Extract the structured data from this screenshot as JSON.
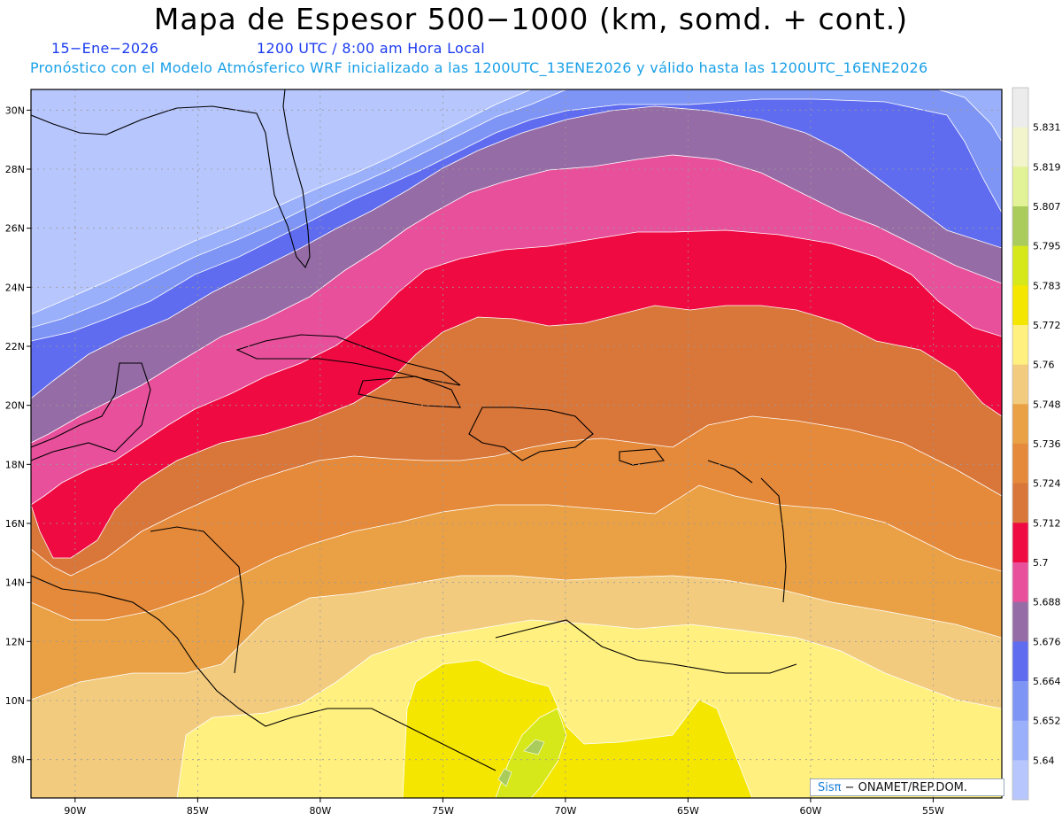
{
  "header": {
    "title": "Mapa de Espesor 500−1000 (km, somd. + cont.)",
    "date": "15−Ene−2026",
    "time": "1200 UTC / 8:00 am Hora Local",
    "description": "Pronóstico con el Modelo Atmósferico WRF inicializado a las 1200UTC_13ENE2026 y válido hasta las  1200UTC_16ENE2026"
  },
  "map": {
    "lat_labels": [
      "30N",
      "28N",
      "26N",
      "24N",
      "22N",
      "20N",
      "18N",
      "16N",
      "14N",
      "12N",
      "10N",
      "8N"
    ],
    "lon_labels": [
      "90W",
      "85W",
      "80W",
      "75W",
      "70W",
      "65W",
      "60W",
      "55W"
    ],
    "lat_values": [
      30,
      28,
      26,
      24,
      22,
      20,
      18,
      16,
      14,
      12,
      10,
      8
    ],
    "lon_values": [
      -90,
      -85,
      -80,
      -75,
      -70,
      -65,
      -60,
      -55
    ],
    "lat_range": [
      6.7,
      30.7
    ],
    "lon_range": [
      -91.8,
      -52.2
    ]
  },
  "legend": {
    "labels": [
      "5.831",
      "5.819",
      "5.807",
      "5.795",
      "5.783",
      "5.772",
      "5.76",
      "5.748",
      "5.736",
      "5.724",
      "5.712",
      "5.7",
      "5.688",
      "5.676",
      "5.664",
      "5.652",
      "5.64"
    ],
    "colors": [
      "#ececec",
      "#f2f5cc",
      "#e2f296",
      "#a9cc5c",
      "#d7e81a",
      "#f5e600",
      "#fff07f",
      "#f2cb7e",
      "#eaa044",
      "#e5893a",
      "#d9763a",
      "#ef0a42",
      "#e8509c",
      "#966ca6",
      "#5f6cf0",
      "#7f95f5",
      "#9bb0fb",
      "#b7c6fd"
    ]
  },
  "credit": {
    "brand": "Sisπ",
    "text": "− ONAMET/REP.DOM."
  }
}
